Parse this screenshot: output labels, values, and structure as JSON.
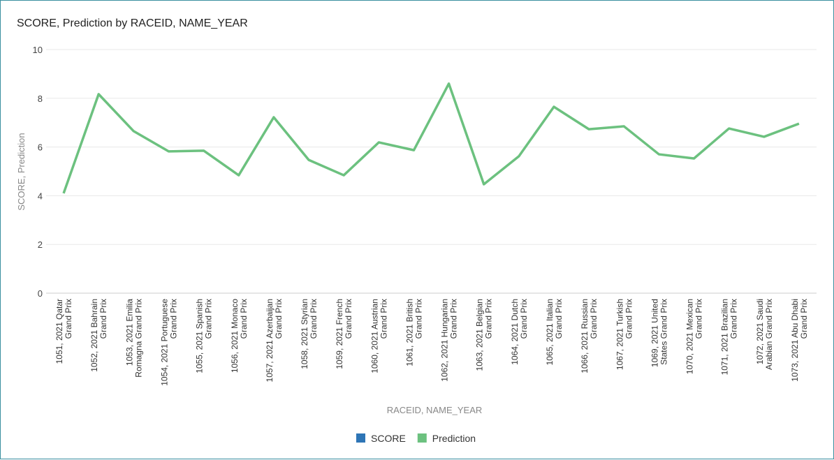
{
  "chart_data": {
    "type": "line",
    "title": "SCORE, Prediction by RACEID, NAME_YEAR",
    "x_label": "RACEID, NAME_YEAR",
    "y_label": "SCORE, Prediction",
    "categories": [
      "1051, 2021 Qatar Grand Prix",
      "1052, 2021 Bahrain Grand Prix",
      "1053, 2021 Emilia Romagna Grand Prix",
      "1054, 2021 Portuguese Grand Prix",
      "1055, 2021 Spanish Grand Prix",
      "1056, 2021 Monaco Grand Prix",
      "1057, 2021 Azerbaijan Grand Prix",
      "1058, 2021 Styrian Grand Prix",
      "1059, 2021 French Grand Prix",
      "1060, 2021 Austrian Grand Prix",
      "1061, 2021 British Grand Prix",
      "1062, 2021 Hungarian Grand Prix",
      "1063, 2021 Belgian Grand Prix",
      "1064, 2021 Dutch Grand Prix",
      "1065, 2021 Italian Grand Prix",
      "1066, 2021 Russian Grand Prix",
      "1067, 2021 Turkish Grand Prix",
      "1069, 2021 United States Grand Prix",
      "1070, 2021 Mexican Grand Prix",
      "1071, 2021 Brazilian Grand Prix",
      "1072, 2021 Saudi Arabian Grand Prix",
      "1073, 2021 Abu Dhabi Grand Prix"
    ],
    "series": [
      {
        "name": "SCORE",
        "color": "#2e75b6",
        "values": [
          null,
          null,
          null,
          null,
          null,
          null,
          null,
          null,
          null,
          null,
          null,
          null,
          null,
          null,
          null,
          null,
          null,
          null,
          null,
          null,
          null,
          null
        ]
      },
      {
        "name": "Prediction",
        "color": "#6cc17f",
        "values": [
          4.1,
          8.17,
          6.65,
          5.82,
          5.85,
          4.84,
          7.22,
          5.47,
          4.84,
          6.19,
          5.87,
          8.6,
          4.47,
          5.62,
          7.65,
          6.73,
          6.85,
          5.7,
          5.53,
          6.76,
          6.42,
          6.96
        ]
      }
    ],
    "ylim": [
      0,
      10
    ],
    "yticks": [
      0,
      2,
      4,
      6,
      8,
      10
    ],
    "grid": true,
    "legend": "bottom"
  }
}
